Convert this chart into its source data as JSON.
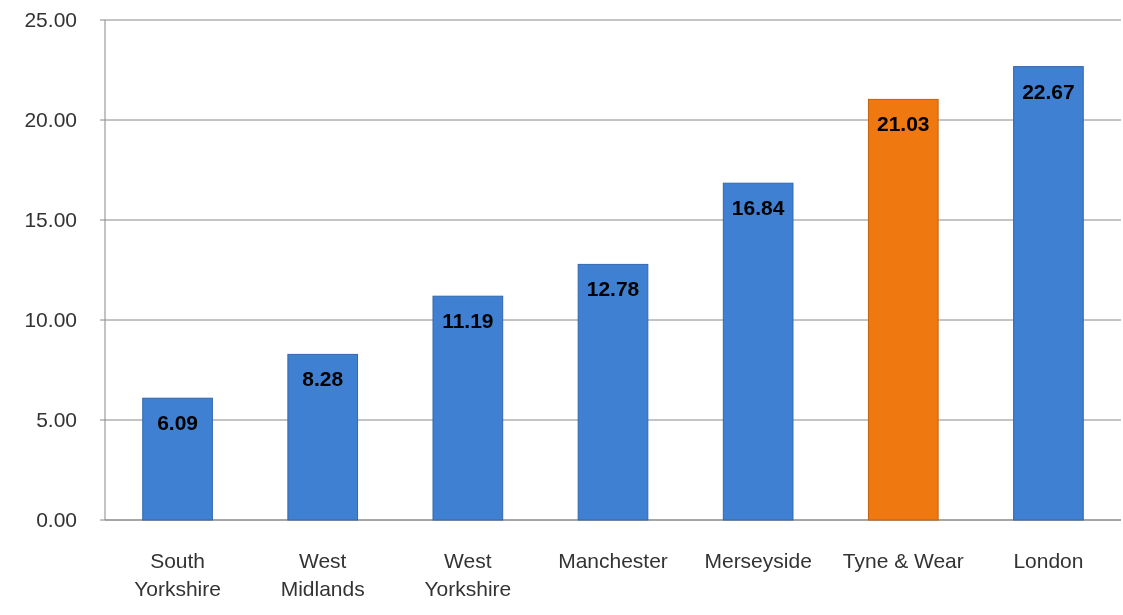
{
  "chart_data": {
    "type": "bar",
    "categories": [
      "South Yorkshire",
      "West Midlands",
      "West Yorkshire",
      "Manchester",
      "Merseyside",
      "Tyne & Wear",
      "London"
    ],
    "values": [
      6.09,
      8.28,
      11.19,
      12.78,
      16.84,
      21.03,
      22.67
    ],
    "colors": [
      "#3f80d2",
      "#3f80d2",
      "#3f80d2",
      "#3f80d2",
      "#3f80d2",
      "#f07810",
      "#3f80d2"
    ],
    "ylim": [
      0,
      25
    ],
    "yticks": [
      {
        "value": 0,
        "label": "0.00"
      },
      {
        "value": 5,
        "label": "5.00"
      },
      {
        "value": 10,
        "label": "10.00"
      },
      {
        "value": 15,
        "label": "15.00"
      },
      {
        "value": 20,
        "label": "20.00"
      },
      {
        "value": 25,
        "label": "25.00"
      }
    ],
    "grid": "y",
    "data_labels": true
  }
}
